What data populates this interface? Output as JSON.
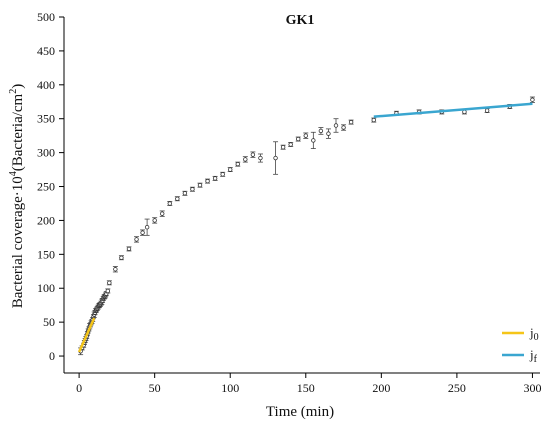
{
  "chart_data": {
    "type": "scatter",
    "title": "GK1",
    "xlabel": "Time (min)",
    "ylabel_prefix": "Bacterial coverage·10",
    "ylabel_sup1": "4",
    "ylabel_mid": "(Bacteria/cm",
    "ylabel_sup2": "2",
    "ylabel_suffix": ")",
    "xlim": [
      -10,
      305
    ],
    "ylim": [
      -25,
      500
    ],
    "xticks": [
      0,
      50,
      100,
      150,
      200,
      250,
      300
    ],
    "yticks": [
      0,
      50,
      100,
      150,
      200,
      250,
      300,
      350,
      400,
      450,
      500
    ],
    "grid": false,
    "legend_position": "bottom-right",
    "series": [
      {
        "kind": "points",
        "x": [
          1,
          2,
          3,
          3.5,
          4,
          4.5,
          5,
          5.5,
          6,
          6.5,
          7,
          7.5,
          8,
          8.5,
          9,
          9.5,
          10,
          10.5,
          11,
          11.5,
          12,
          12.5,
          13,
          13.5,
          14,
          14.5,
          15,
          15.5,
          16,
          16.5,
          17,
          17.5,
          18,
          19,
          20,
          24,
          28,
          33,
          38,
          42,
          45,
          50,
          55,
          60,
          65,
          70,
          75,
          80,
          85,
          90,
          95,
          100,
          105,
          110,
          115,
          120,
          130,
          135,
          140,
          145,
          150,
          155,
          160,
          165,
          170,
          175,
          180,
          195,
          210,
          225,
          240,
          255,
          270,
          285,
          300
        ],
        "y": [
          7,
          12,
          16,
          20,
          23,
          26,
          29,
          33,
          37,
          40,
          44,
          46,
          49,
          51,
          54,
          58,
          61,
          64,
          67,
          68,
          70,
          72,
          74,
          75,
          76,
          78,
          80,
          82,
          85,
          87,
          88,
          90,
          92,
          96,
          108,
          128,
          145,
          158,
          172,
          182,
          190,
          200,
          210,
          225,
          232,
          240,
          246,
          252,
          258,
          262,
          268,
          275,
          283,
          290,
          297,
          292,
          292,
          308,
          312,
          320,
          325,
          318,
          332,
          328,
          340,
          337,
          345,
          348,
          358,
          360,
          360,
          360,
          362,
          368,
          378
        ],
        "err": [
          5,
          3,
          3,
          3,
          3,
          3,
          3,
          3,
          3,
          3,
          4,
          3,
          3,
          3,
          3,
          3,
          4,
          3,
          3,
          3,
          3,
          3,
          3,
          3,
          3,
          3,
          4,
          3,
          3,
          3,
          3,
          3,
          3,
          3,
          3,
          4,
          3,
          3,
          4,
          4,
          12,
          4,
          4,
          3,
          3,
          3,
          3,
          3,
          3,
          3,
          3,
          3,
          3,
          4,
          4,
          6,
          24,
          3,
          3,
          3,
          4,
          12,
          5,
          7,
          10,
          4,
          3,
          3,
          3,
          3,
          3,
          3,
          3,
          3,
          4
        ]
      },
      {
        "kind": "fit",
        "name": "j0",
        "color": "#f5c518",
        "x": [
          0,
          10
        ],
        "y": [
          6,
          56
        ]
      },
      {
        "kind": "fit",
        "name": "jf",
        "color": "#3aa6d0",
        "x": [
          195,
          300
        ],
        "y": [
          353,
          372
        ]
      }
    ],
    "legend": [
      {
        "base": "j",
        "sub": "0",
        "color": "#f5c518"
      },
      {
        "base": "j",
        "sub": "f",
        "color": "#3aa6d0"
      }
    ]
  }
}
